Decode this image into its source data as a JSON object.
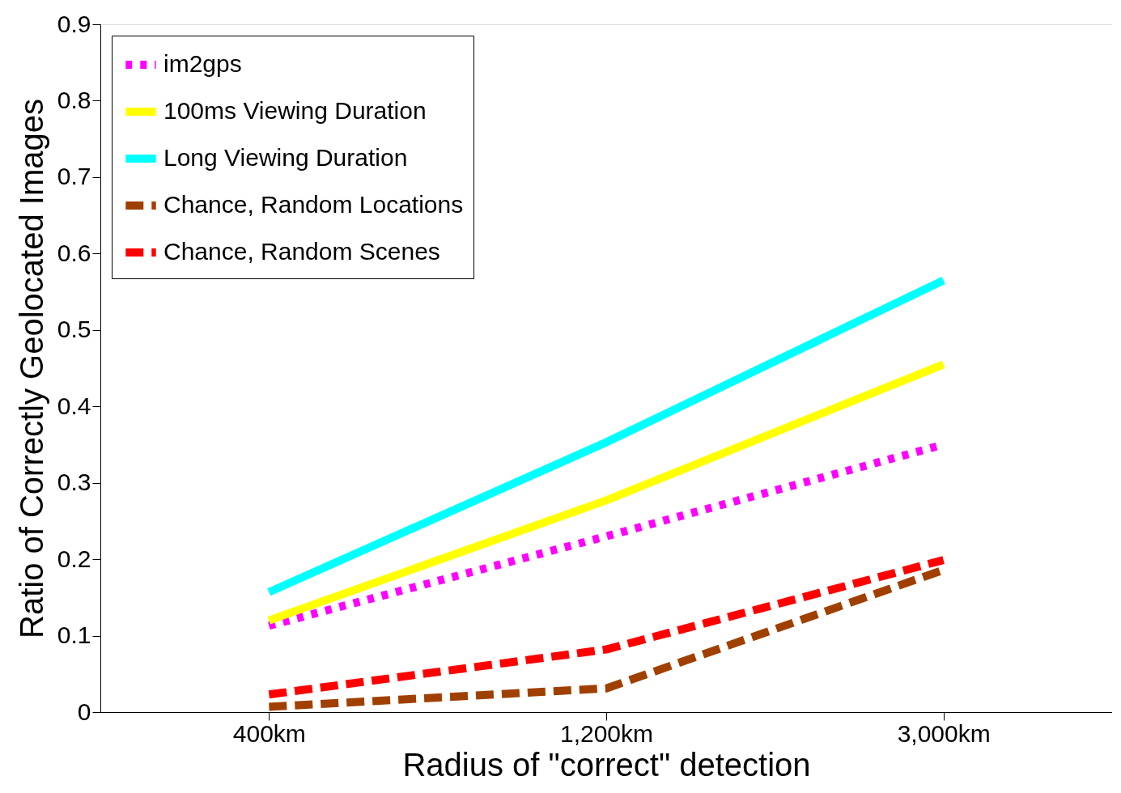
{
  "chart_data": {
    "type": "line",
    "xlabel": "Radius of \"correct\" detection",
    "ylabel": "Ratio of Correctly Geolocated Images",
    "categories": [
      "400km",
      "1,200km",
      "3,000km"
    ],
    "series": [
      {
        "name": "im2gps",
        "color": "#ff00ff",
        "line_style": "dotted",
        "values": [
          0.113,
          0.23,
          0.35
        ]
      },
      {
        "name": "100ms Viewing Duration",
        "color": "#ffff00",
        "line_style": "solid",
        "values": [
          0.12,
          0.277,
          0.455
        ]
      },
      {
        "name": "Long Viewing Duration",
        "color": "#00ffff",
        "line_style": "solid",
        "values": [
          0.157,
          0.353,
          0.565
        ]
      },
      {
        "name": "Chance, Random Locations",
        "color": "#a04000",
        "line_style": "dashed",
        "values": [
          0.007,
          0.031,
          0.186
        ]
      },
      {
        "name": "Chance, Random Scenes",
        "color": "#ff0000",
        "line_style": "dashed",
        "values": [
          0.023,
          0.082,
          0.199
        ]
      }
    ],
    "ylim": [
      0,
      0.9
    ],
    "yticks": [
      0,
      0.1,
      0.2,
      0.3,
      0.4,
      0.5,
      0.6,
      0.7,
      0.8,
      0.9
    ],
    "grid": false,
    "legend": "top left",
    "marker": "none"
  }
}
